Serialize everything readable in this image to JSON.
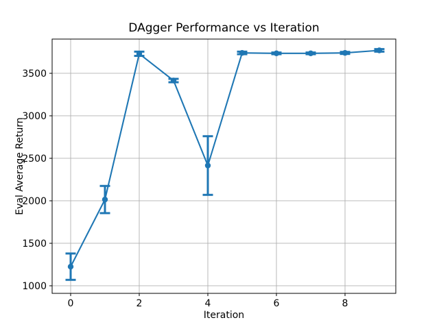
{
  "chart_data": {
    "type": "line",
    "title": "DAgger Performance vs Iteration",
    "xlabel": "Iteration",
    "ylabel": "Eval Average Return",
    "series": [
      {
        "name": "eval-average-return",
        "x": [
          0,
          1,
          2,
          3,
          4,
          5,
          6,
          7,
          8,
          9
        ],
        "y": [
          1225,
          2015,
          3730,
          3415,
          2415,
          3740,
          3735,
          3735,
          3740,
          3770
        ],
        "yerr": [
          155,
          160,
          25,
          20,
          345,
          15,
          10,
          10,
          12,
          15
        ]
      }
    ],
    "xticks": [
      0,
      2,
      4,
      6,
      8
    ],
    "yticks": [
      1000,
      1500,
      2000,
      2500,
      3000,
      3500
    ],
    "xlim": [
      -0.54,
      9.48
    ],
    "ylim": [
      911,
      3903
    ],
    "grid": true,
    "legend": "none",
    "marker": "o",
    "error_bars": true,
    "colors": {
      "line": "#1f77b4",
      "grid": "#b0b0b0",
      "axis": "#000000",
      "background": "#ffffff"
    }
  }
}
